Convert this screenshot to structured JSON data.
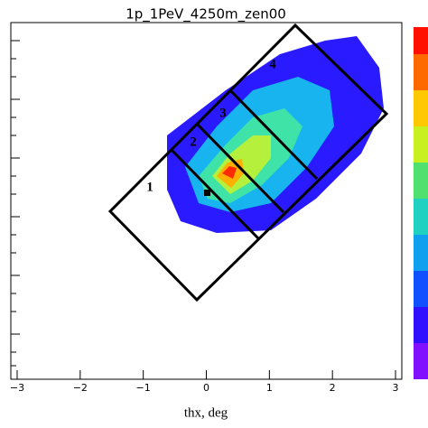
{
  "chart_data": {
    "type": "contour",
    "title": "1p_1PeV_4250m_zen00",
    "x_label": "thx, deg",
    "xlim": [
      -3.1,
      3.1
    ],
    "xticks": [
      {
        "value": -3,
        "label": "−3"
      },
      {
        "value": -2,
        "label": "−2"
      },
      {
        "value": -1,
        "label": "−1"
      },
      0,
      1,
      2,
      3
    ],
    "annotations": [
      "1",
      "2",
      "3",
      "4"
    ]
  }
}
